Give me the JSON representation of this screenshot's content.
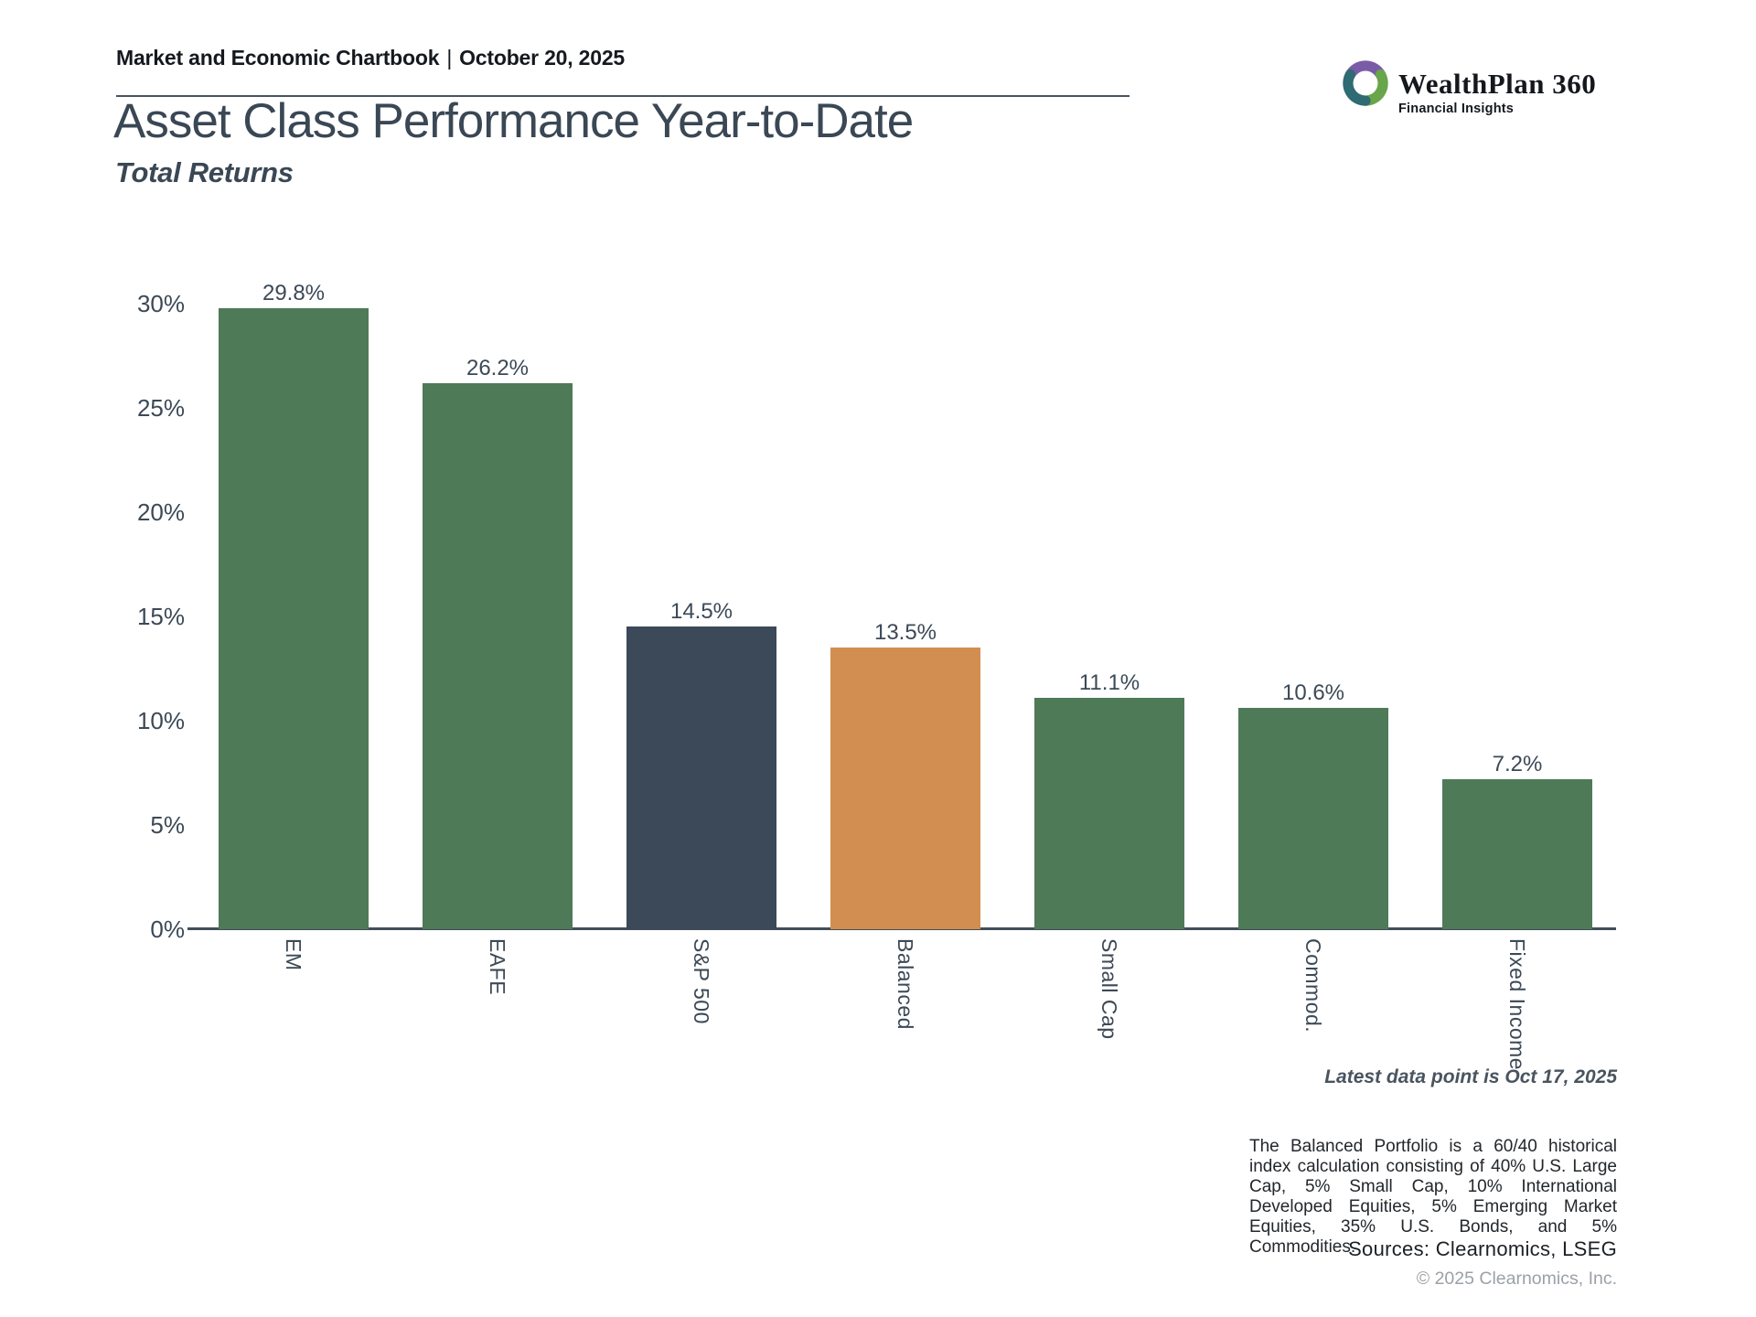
{
  "header": {
    "title": "Market and Economic Chartbook",
    "separator": "|",
    "date": "October 20, 2025"
  },
  "logo": {
    "name": "WealthPlan 360",
    "tagline": "Financial Insights"
  },
  "title": "Asset Class Performance Year-to-Date",
  "subtitle": "Total Returns",
  "chart_data": {
    "type": "bar",
    "title": "Asset Class Performance Year-to-Date",
    "subtitle": "Total Returns",
    "categories": [
      "EM",
      "EAFE",
      "S&P 500",
      "Balanced",
      "Small Cap",
      "Commod.",
      "Fixed Income"
    ],
    "values": [
      29.8,
      26.2,
      14.5,
      13.5,
      11.1,
      10.6,
      7.2
    ],
    "value_labels": [
      "29.8%",
      "26.2%",
      "14.5%",
      "13.5%",
      "11.1%",
      "10.6%",
      "7.2%"
    ],
    "bar_colors": [
      "#4e7a58",
      "#4e7a58",
      "#3b4959",
      "#d28e50",
      "#4e7a58",
      "#4e7a58",
      "#4e7a58"
    ],
    "xlabel": "",
    "ylabel": "",
    "ylim": [
      0,
      30
    ],
    "ytick_step": 5,
    "yticks": [
      "0%",
      "5%",
      "10%",
      "15%",
      "20%",
      "25%",
      "30%"
    ],
    "grid": false,
    "legend": false
  },
  "footer": {
    "latest_note": "Latest data point is Oct 17, 2025",
    "footnote": "The Balanced Portfolio is a 60/40 historical index calculation consisting of 40% U.S. Large Cap, 5% Small Cap, 10% International Developed Equities, 5% Emerging Market Equities, 35% U.S. Bonds, and 5% Commodities.",
    "sources": "Sources: Clearnomics, LSEG",
    "copyright": "© 2025 Clearnomics, Inc."
  },
  "colors": {
    "bar_green": "#4e7a58",
    "bar_navy": "#3b4959",
    "bar_orange": "#d28e50",
    "text_slate": "#3c4956",
    "axis": "#414e5a",
    "header_rule": "#47545f",
    "copyright_gray": "#9ba1a7",
    "logo_purple": "#7a5ca6",
    "logo_teal": "#2e6b72",
    "logo_green": "#69a54b"
  }
}
